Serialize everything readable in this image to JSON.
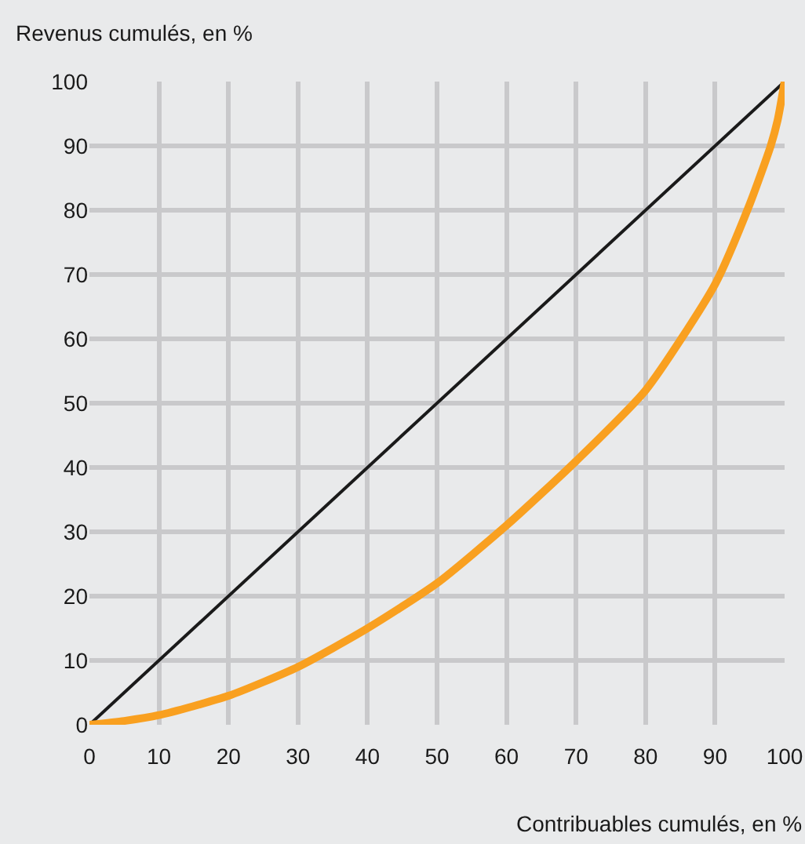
{
  "chart_data": {
    "type": "line",
    "xlabel": "Contribuables cumulés, en %",
    "ylabel": "Revenus cumulés, en %",
    "xlim": [
      0,
      100
    ],
    "ylim": [
      0,
      100
    ],
    "xticks": [
      0,
      10,
      20,
      30,
      40,
      50,
      60,
      70,
      80,
      90,
      100
    ],
    "yticks": [
      0,
      10,
      20,
      30,
      40,
      50,
      60,
      70,
      80,
      90,
      100
    ],
    "grid": true,
    "series": [
      {
        "color": "#1a1a1a",
        "x": [
          0,
          100
        ],
        "values": [
          0,
          100
        ]
      },
      {
        "color": "#f9a020",
        "x": [
          0,
          5,
          10,
          20,
          30,
          40,
          50,
          60,
          70,
          80,
          90,
          95,
          98,
          99,
          100
        ],
        "values": [
          0,
          0.6,
          1.5,
          4.5,
          9,
          15,
          22,
          31,
          41,
          52,
          68.5,
          81,
          90,
          94,
          100
        ]
      }
    ]
  }
}
